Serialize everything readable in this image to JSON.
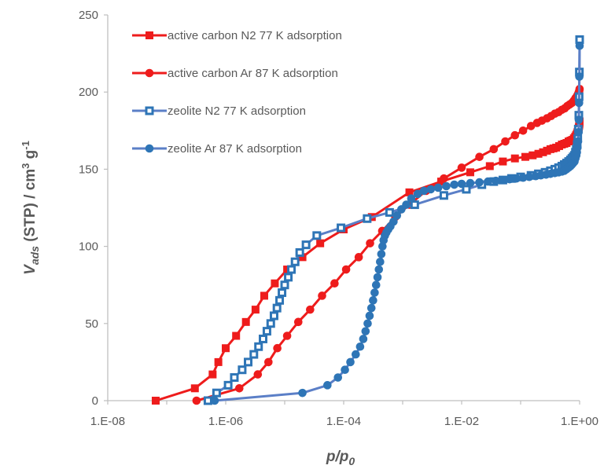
{
  "colors": {
    "red": "#ee1c1c",
    "blue": "#2e75b6",
    "blue_line": "#5b7fc7",
    "axis": "#bfbfbf",
    "text": "#595959"
  },
  "chart_data": {
    "type": "scatter",
    "x_scale": "log",
    "xlim": [
      1e-08,
      1
    ],
    "ylim": [
      0,
      250
    ],
    "x_ticks": [
      "1.E-08",
      "1.E-06",
      "1.E-04",
      "1.E-02",
      "1.E+00"
    ],
    "y_ticks": [
      "0",
      "50",
      "100",
      "150",
      "200",
      "250"
    ],
    "xlabel": {
      "main": "p/p",
      "sub": "0"
    },
    "ylabel": {
      "main": "V",
      "sub": "ads",
      "rest": " (STP) / cm",
      "sup1": "3",
      "rest2": " g",
      "sup2": "-1"
    },
    "grid": false,
    "legend_position": "top-left",
    "series": [
      {
        "name": "active carbon N2 77 K adsorption",
        "color": "#ee1c1c",
        "line_color": "#ee1c1c",
        "marker": "square",
        "x": [
          6.5e-08,
          3e-07,
          6e-07,
          7.5e-07,
          1e-06,
          1.5e-06,
          2.2e-06,
          3.2e-06,
          4.5e-06,
          6.8e-06,
          1.1e-05,
          2e-05,
          4e-05,
          0.0001,
          0.0003,
          0.0013,
          0.0045,
          0.014,
          0.03,
          0.05,
          0.08,
          0.12,
          0.16,
          0.2,
          0.24,
          0.28,
          0.32,
          0.36,
          0.4,
          0.45,
          0.5,
          0.55,
          0.6,
          0.65,
          0.7,
          0.75,
          0.8,
          0.84,
          0.87,
          0.9,
          0.92,
          0.94,
          0.96,
          0.97,
          0.98,
          0.99,
          0.995,
          1.0
        ],
        "y": [
          0,
          8,
          17,
          25,
          34,
          42,
          51,
          59,
          68,
          76,
          85,
          93,
          102,
          111,
          119,
          135,
          142,
          148,
          152,
          155,
          157,
          158,
          159,
          160,
          161,
          162,
          163,
          163.5,
          164,
          165,
          166,
          166.5,
          167,
          168,
          168.5,
          169,
          170,
          171,
          172,
          173,
          174,
          175,
          176,
          177,
          178,
          179,
          180,
          181
        ]
      },
      {
        "name": "active carbon Ar 87 K adsorption",
        "color": "#ee1c1c",
        "line_color": "#ee1c1c",
        "marker": "circle",
        "x": [
          3.2e-07,
          1.7e-06,
          3.5e-06,
          5.3e-06,
          7.5e-06,
          1.1e-05,
          1.7e-05,
          2.7e-05,
          4.3e-05,
          7e-05,
          0.00011,
          0.00018,
          0.00028,
          0.00045,
          0.00075,
          0.0013,
          0.0025,
          0.005,
          0.01,
          0.02,
          0.035,
          0.055,
          0.08,
          0.11,
          0.15,
          0.19,
          0.23,
          0.28,
          0.33,
          0.38,
          0.44,
          0.5,
          0.56,
          0.62,
          0.68,
          0.74,
          0.8,
          0.85,
          0.89,
          0.92,
          0.95,
          0.97,
          0.99,
          1.0
        ],
        "y": [
          0,
          8,
          17,
          25,
          34,
          42,
          51,
          59,
          68,
          76,
          85,
          93,
          102,
          110,
          119,
          127,
          136,
          144,
          151,
          158,
          163,
          168,
          172,
          175,
          178,
          180,
          181.5,
          183,
          184.5,
          186,
          187,
          188.5,
          189.5,
          191,
          192,
          193,
          194.5,
          196,
          197,
          198,
          199,
          200,
          201,
          202
        ]
      },
      {
        "name": "zeolite N2 77 K adsorption",
        "color": "#2e75b6",
        "line_color": "#5b7fc7",
        "marker": "square-hollow",
        "x": [
          5e-07,
          7e-07,
          1.1e-06,
          1.4e-06,
          1.9e-06,
          2.4e-06,
          3e-06,
          3.6e-06,
          4.3e-06,
          5e-06,
          5.8e-06,
          6.6e-06,
          7.4e-06,
          8.2e-06,
          9e-06,
          1e-05,
          1.15e-05,
          1.3e-05,
          1.5e-05,
          1.8e-05,
          2.3e-05,
          3.5e-05,
          9e-05,
          0.00025,
          0.0006,
          0.0016,
          0.005,
          0.012,
          0.022,
          0.035,
          0.05,
          0.07,
          0.1,
          0.15,
          0.2,
          0.26,
          0.32,
          0.38,
          0.44,
          0.5,
          0.55,
          0.6,
          0.65,
          0.7,
          0.74,
          0.78,
          0.82,
          0.85,
          0.88,
          0.91,
          0.93,
          0.95,
          0.97,
          0.98,
          0.99,
          1.0
        ],
        "y": [
          0,
          5,
          10,
          15,
          20,
          25,
          30,
          35,
          40,
          45,
          50,
          55,
          60,
          65,
          70,
          75,
          80,
          85,
          90,
          96,
          101,
          107,
          112,
          118,
          122,
          127,
          133,
          137,
          140,
          142,
          143,
          144,
          145,
          146,
          147,
          148,
          149,
          150,
          151,
          152,
          153,
          154,
          155,
          156,
          157,
          158,
          159,
          161,
          163,
          166,
          170,
          176,
          185,
          197,
          213,
          234
        ]
      },
      {
        "name": "zeolite Ar 87 K adsorption",
        "color": "#2e75b6",
        "line_color": "#5b7fc7",
        "marker": "circle",
        "x": [
          6.5e-07,
          2e-05,
          5.3e-05,
          8e-05,
          0.000105,
          0.00013,
          0.00016,
          0.00019,
          0.000215,
          0.000235,
          0.000255,
          0.000275,
          0.000295,
          0.000315,
          0.000335,
          0.000355,
          0.000375,
          0.000395,
          0.000415,
          0.000435,
          0.000455,
          0.000475,
          0.0005,
          0.00053,
          0.00057,
          0.00062,
          0.0007,
          0.0008,
          0.00095,
          0.00115,
          0.0014,
          0.0018,
          0.0023,
          0.003,
          0.004,
          0.0055,
          0.0075,
          0.01,
          0.014,
          0.02,
          0.028,
          0.038,
          0.05,
          0.065,
          0.085,
          0.11,
          0.14,
          0.18,
          0.22,
          0.27,
          0.32,
          0.38,
          0.44,
          0.5,
          0.55,
          0.6,
          0.65,
          0.7,
          0.74,
          0.78,
          0.82,
          0.85,
          0.88,
          0.9,
          0.92,
          0.94,
          0.96,
          0.97,
          0.98,
          0.99,
          1.0
        ],
        "y": [
          0,
          5,
          10,
          15,
          20,
          25,
          30,
          35,
          40,
          45,
          50,
          55,
          60,
          65,
          70,
          75,
          80,
          85,
          90,
          95,
          100,
          104,
          107,
          109,
          111,
          113,
          116,
          120,
          124,
          127,
          131,
          134,
          136,
          137,
          138,
          139,
          140,
          140.5,
          141,
          141.5,
          142,
          142.5,
          143,
          143.5,
          144,
          144.5,
          145,
          145.5,
          146,
          146.5,
          147,
          147.5,
          148,
          148.5,
          149,
          150,
          151,
          152,
          153,
          154,
          155,
          157,
          159,
          161,
          164,
          168,
          174,
          182,
          193,
          210,
          230
        ]
      }
    ]
  }
}
